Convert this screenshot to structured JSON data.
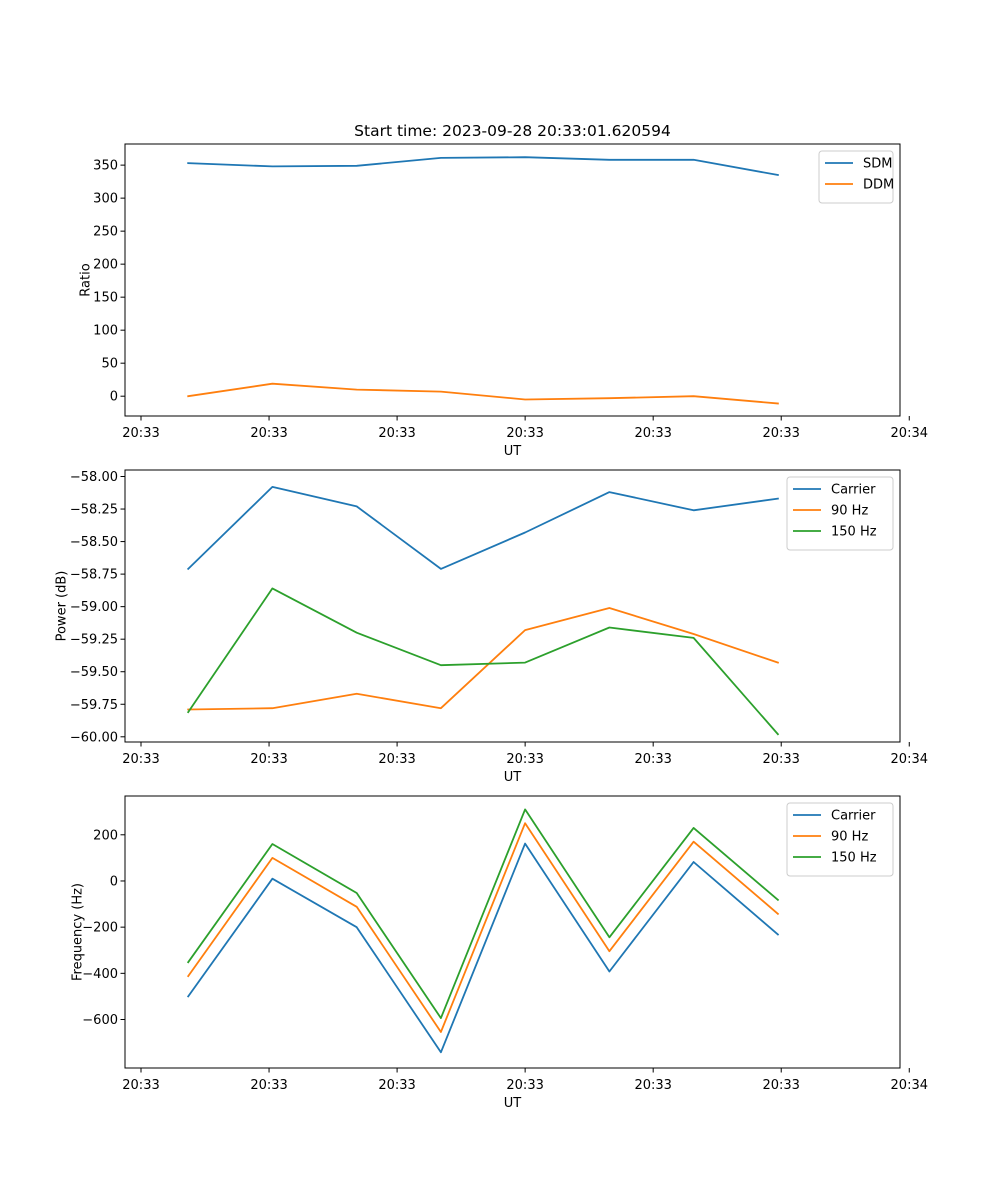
{
  "title": "Start time: 2023-09-28 20:33:01.620594",
  "chart_data": [
    {
      "type": "line",
      "title": "Start time: 2023-09-28 20:33:01.620594",
      "xlabel": "UT",
      "ylabel": "Ratio",
      "x": [
        1,
        2,
        3,
        4,
        5,
        6,
        7,
        8
      ],
      "xlim": [
        0.25,
        9.45
      ],
      "xticks": [
        0.44,
        1.96,
        3.48,
        5.0,
        6.52,
        8.04,
        9.56
      ],
      "xtick_labels": [
        "20:33",
        "20:33",
        "20:33",
        "20:33",
        "20:33",
        "20:33",
        "20:34"
      ],
      "ylim": [
        -30,
        382
      ],
      "yticks": [
        0,
        50,
        100,
        150,
        200,
        250,
        300,
        350
      ],
      "ytick_labels": [
        "0",
        "50",
        "100",
        "150",
        "200",
        "250",
        "300",
        "350"
      ],
      "legend": "top-right",
      "series": [
        {
          "name": "SDM",
          "color": "#1f77b4",
          "values": [
            353,
            348,
            349,
            361,
            362,
            358,
            358,
            335
          ]
        },
        {
          "name": "DDM",
          "color": "#ff7f0e",
          "values": [
            0,
            19,
            10,
            7,
            -5,
            -3,
            0,
            -11
          ]
        }
      ]
    },
    {
      "type": "line",
      "xlabel": "UT",
      "ylabel": "Power (dB)",
      "x": [
        1,
        2,
        3,
        4,
        5,
        6,
        7,
        8
      ],
      "xlim": [
        0.25,
        9.45
      ],
      "xticks": [
        0.44,
        1.96,
        3.48,
        5.0,
        6.52,
        8.04,
        9.56
      ],
      "xtick_labels": [
        "20:33",
        "20:33",
        "20:33",
        "20:33",
        "20:33",
        "20:33",
        "20:34"
      ],
      "ylim": [
        -60.04,
        -57.95
      ],
      "yticks": [
        -60.0,
        -59.75,
        -59.5,
        -59.25,
        -59.0,
        -58.75,
        -58.5,
        -58.25,
        -58.0
      ],
      "ytick_labels": [
        "−60.00",
        "−59.75",
        "−59.50",
        "−59.25",
        "−59.00",
        "−58.75",
        "−58.50",
        "−58.25",
        "−58.00"
      ],
      "legend": "top-right",
      "series": [
        {
          "name": "Carrier",
          "color": "#1f77b4",
          "values": [
            -58.71,
            -58.08,
            -58.23,
            -58.71,
            -58.43,
            -58.12,
            -58.26,
            -58.17
          ]
        },
        {
          "name": "90 Hz",
          "color": "#ff7f0e",
          "values": [
            -59.79,
            -59.78,
            -59.67,
            -59.78,
            -59.18,
            -59.01,
            -59.21,
            -59.43
          ]
        },
        {
          "name": "150 Hz",
          "color": "#2ca02c",
          "values": [
            -59.81,
            -58.86,
            -59.2,
            -59.45,
            -59.43,
            -59.16,
            -59.24,
            -59.98
          ]
        }
      ]
    },
    {
      "type": "line",
      "xlabel": "UT",
      "ylabel": "Frequency (Hz)",
      "x": [
        1,
        2,
        3,
        4,
        5,
        6,
        7,
        8
      ],
      "xlim": [
        0.25,
        9.45
      ],
      "xticks": [
        0.44,
        1.96,
        3.48,
        5.0,
        6.52,
        8.04,
        9.56
      ],
      "xtick_labels": [
        "20:33",
        "20:33",
        "20:33",
        "20:33",
        "20:33",
        "20:33",
        "20:34"
      ],
      "ylim": [
        -810,
        368
      ],
      "yticks": [
        -600,
        -400,
        -200,
        0,
        200
      ],
      "ytick_labels": [
        "−600",
        "−400",
        "−200",
        "0",
        "200"
      ],
      "legend": "top-right",
      "series": [
        {
          "name": "Carrier",
          "color": "#1f77b4",
          "values": [
            -500,
            10,
            -200,
            -742,
            162,
            -392,
            82,
            -232
          ]
        },
        {
          "name": "90 Hz",
          "color": "#ff7f0e",
          "values": [
            -412,
            100,
            -112,
            -654,
            250,
            -304,
            170,
            -142
          ]
        },
        {
          "name": "150 Hz",
          "color": "#2ca02c",
          "values": [
            -352,
            160,
            -52,
            -594,
            310,
            -244,
            230,
            -82
          ]
        }
      ]
    }
  ]
}
